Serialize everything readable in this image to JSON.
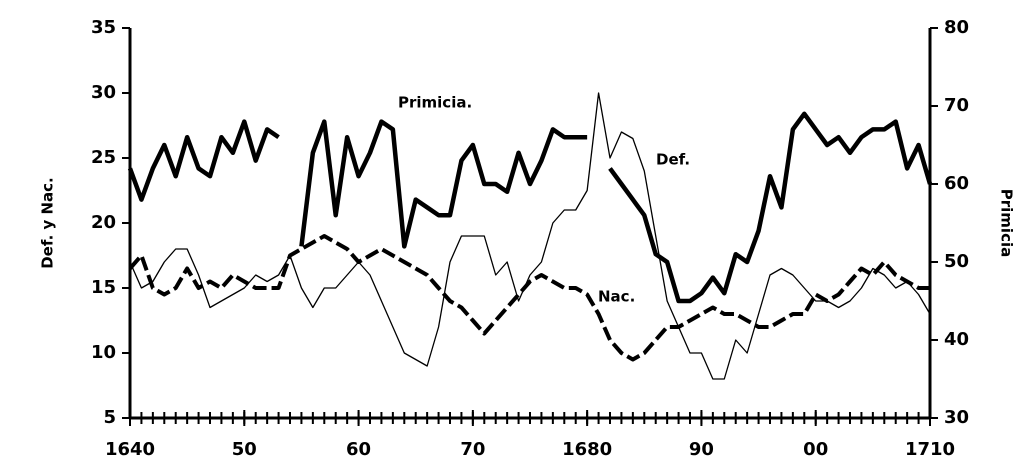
{
  "chart_data": {
    "type": "line",
    "ylabel": "Def. y Nac.",
    "y2label": "Primicia",
    "x": [
      1640,
      1641,
      1642,
      1643,
      1644,
      1645,
      1646,
      1647,
      1648,
      1649,
      1650,
      1651,
      1652,
      1653,
      1654,
      1655,
      1656,
      1657,
      1658,
      1659,
      1660,
      1661,
      1662,
      1663,
      1664,
      1665,
      1666,
      1667,
      1668,
      1669,
      1670,
      1671,
      1672,
      1673,
      1674,
      1675,
      1676,
      1677,
      1678,
      1679,
      1680,
      1681,
      1682,
      1683,
      1684,
      1685,
      1686,
      1687,
      1688,
      1689,
      1690,
      1691,
      1692,
      1693,
      1694,
      1695,
      1696,
      1697,
      1698,
      1699,
      1700,
      1701,
      1702,
      1703,
      1704,
      1705,
      1706,
      1707,
      1708,
      1709,
      1710
    ],
    "xlim": [
      1640,
      1710
    ],
    "xticks": [
      1640,
      {
        "value": 1650,
        "label": "50"
      },
      {
        "value": 1660,
        "label": "60"
      },
      {
        "value": 1670,
        "label": "70"
      },
      1680,
      {
        "value": 1690,
        "label": "90"
      },
      {
        "value": 1700,
        "label": "00"
      },
      1710
    ],
    "ylim": [
      5,
      35
    ],
    "yticks": [
      5,
      10,
      15,
      20,
      25,
      30,
      35
    ],
    "y2lim": [
      30,
      80
    ],
    "y2ticks": [
      30,
      40,
      50,
      60,
      70,
      80
    ],
    "series": [
      {
        "name": "Primicia.",
        "color": "#000000",
        "axis": "y2",
        "width": 4.5,
        "dashed": false,
        "values": [
          62,
          58,
          62,
          65,
          61,
          66,
          62,
          61,
          66,
          64,
          68,
          63,
          67,
          66,
          null,
          52,
          64,
          68,
          56,
          66,
          61,
          64,
          68,
          67,
          52,
          58,
          57,
          56,
          56,
          63,
          65,
          60,
          60,
          59,
          64,
          60,
          63,
          67,
          66,
          66,
          66,
          null,
          62,
          60,
          58,
          56,
          51,
          50,
          45,
          45,
          46,
          48,
          46,
          51,
          50,
          54,
          61,
          57,
          67,
          69,
          67,
          65,
          66,
          64,
          66,
          67,
          67,
          68,
          62,
          65,
          60
        ]
      },
      {
        "name": "Def.",
        "color": "#000000",
        "width": 1.3,
        "dashed": false,
        "values": [
          17,
          15,
          15.5,
          17,
          18,
          18,
          16,
          13.5,
          14,
          14.5,
          15,
          16,
          15.5,
          16,
          17.5,
          15,
          13.5,
          15,
          15,
          16,
          17,
          16,
          14,
          12,
          10,
          9.5,
          9,
          12,
          17,
          19,
          19,
          19,
          16,
          17,
          14,
          16,
          17,
          20,
          21,
          21,
          22.5,
          30,
          25,
          27,
          26.5,
          24,
          19,
          14,
          12,
          10,
          10,
          8,
          8,
          11,
          10,
          13,
          16,
          16.5,
          16,
          15,
          14,
          14,
          13.5,
          14,
          15,
          16.5,
          16,
          15,
          15.5,
          14.5,
          13
        ]
      },
      {
        "name": "Nac.",
        "color": "#000000",
        "width": 4,
        "dashed": true,
        "values": [
          16.5,
          17.5,
          15,
          14.5,
          15,
          16.5,
          15,
          15.5,
          15,
          16,
          15.5,
          15,
          15,
          15,
          17.5,
          18,
          18.5,
          19,
          18.5,
          18,
          17,
          17.5,
          18,
          17.5,
          17,
          16.5,
          16,
          15,
          14,
          13.5,
          12.5,
          11.5,
          12.5,
          13.5,
          14.5,
          15.5,
          16,
          15.5,
          15,
          15,
          14.5,
          13,
          11,
          10,
          9.5,
          10,
          11,
          12,
          12,
          12.5,
          13,
          13.5,
          13,
          13,
          12.5,
          12,
          12,
          12.5,
          13,
          13,
          14.5,
          14,
          14.5,
          15.5,
          16.5,
          16,
          17,
          16,
          15.5,
          15,
          15
        ]
      }
    ]
  }
}
